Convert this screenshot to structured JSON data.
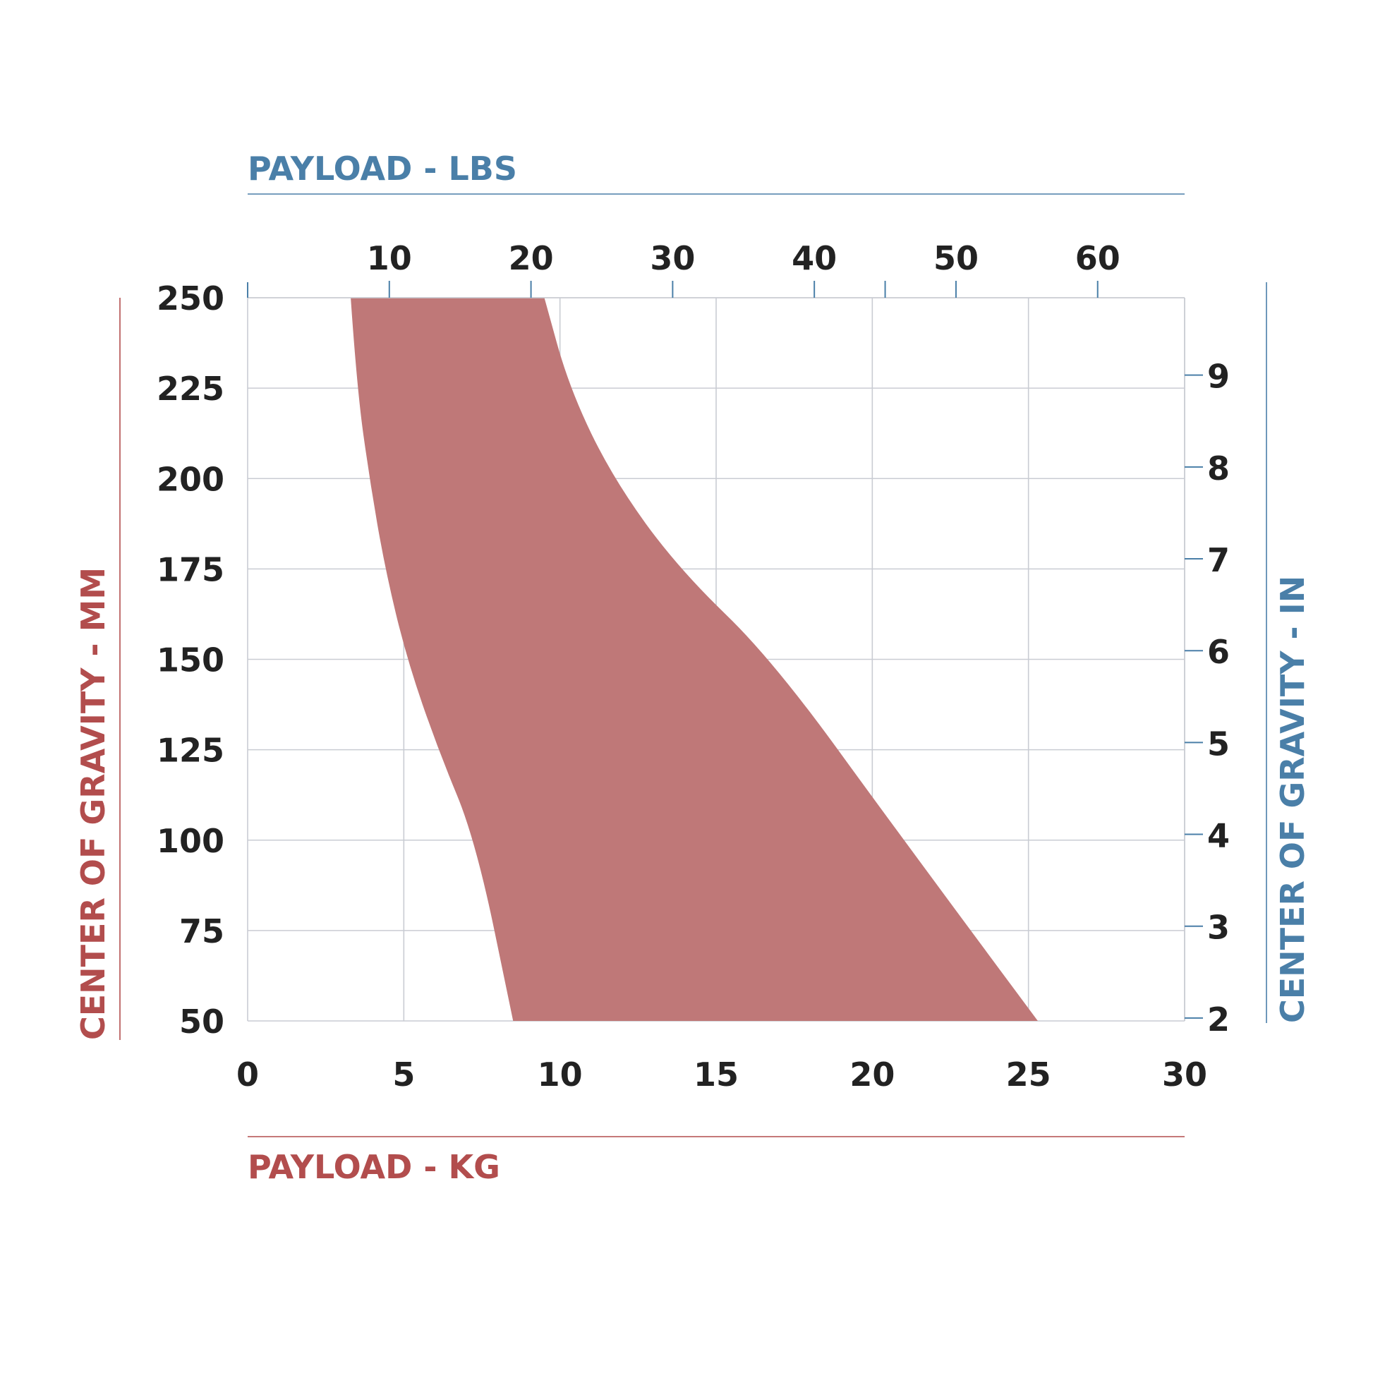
{
  "chart_data": {
    "type": "area",
    "x_bottom": {
      "label": "PAYLOAD - KG",
      "range": [
        0,
        30
      ],
      "ticks": [
        0,
        5,
        10,
        15,
        20,
        25,
        30
      ],
      "tick_labels": [
        "0",
        "5",
        "10",
        "15",
        "20",
        "25",
        "30"
      ]
    },
    "x_top": {
      "label": "PAYLOAD - LBS",
      "ticks": [
        10,
        20,
        30,
        40,
        50,
        60
      ],
      "tick_labels": [
        "10",
        "20",
        "30",
        "40",
        "50",
        "60"
      ]
    },
    "y_left": {
      "label": "CENTER OF GRAVITY - MM",
      "range": [
        50,
        250
      ],
      "ticks": [
        50,
        75,
        100,
        125,
        150,
        175,
        200,
        225,
        250
      ],
      "tick_labels": [
        "50",
        "75",
        "100",
        "125",
        "150",
        "175",
        "200",
        "225",
        "250"
      ]
    },
    "y_right": {
      "label": "CENTER OF GRAVITY - IN",
      "ticks": [
        2,
        3,
        4,
        5,
        6,
        7,
        8,
        9
      ],
      "tick_labels": [
        "2",
        "3",
        "4",
        "5",
        "6",
        "7",
        "8",
        "9"
      ]
    },
    "region": {
      "name": "",
      "lower_bound": {
        "x": [
          3.3,
          3.5,
          3.9,
          4.4,
          5.1,
          6.1,
          7.3,
          8.5
        ],
        "y": [
          250,
          225,
          200,
          175,
          150,
          125,
          100,
          50
        ]
      },
      "upper_bound": {
        "x": [
          9.5,
          10.3,
          11.7,
          13.8,
          16.8,
          21.0,
          25.3
        ],
        "y": [
          250,
          225,
          200,
          175,
          150,
          100,
          50
        ]
      }
    },
    "grid": true,
    "colors": {
      "region": "#bf7878",
      "metric": "#b24d4d",
      "imperial": "#4a7fa8",
      "grid": "#c9ccd3",
      "ticks_text": "#222222"
    }
  }
}
